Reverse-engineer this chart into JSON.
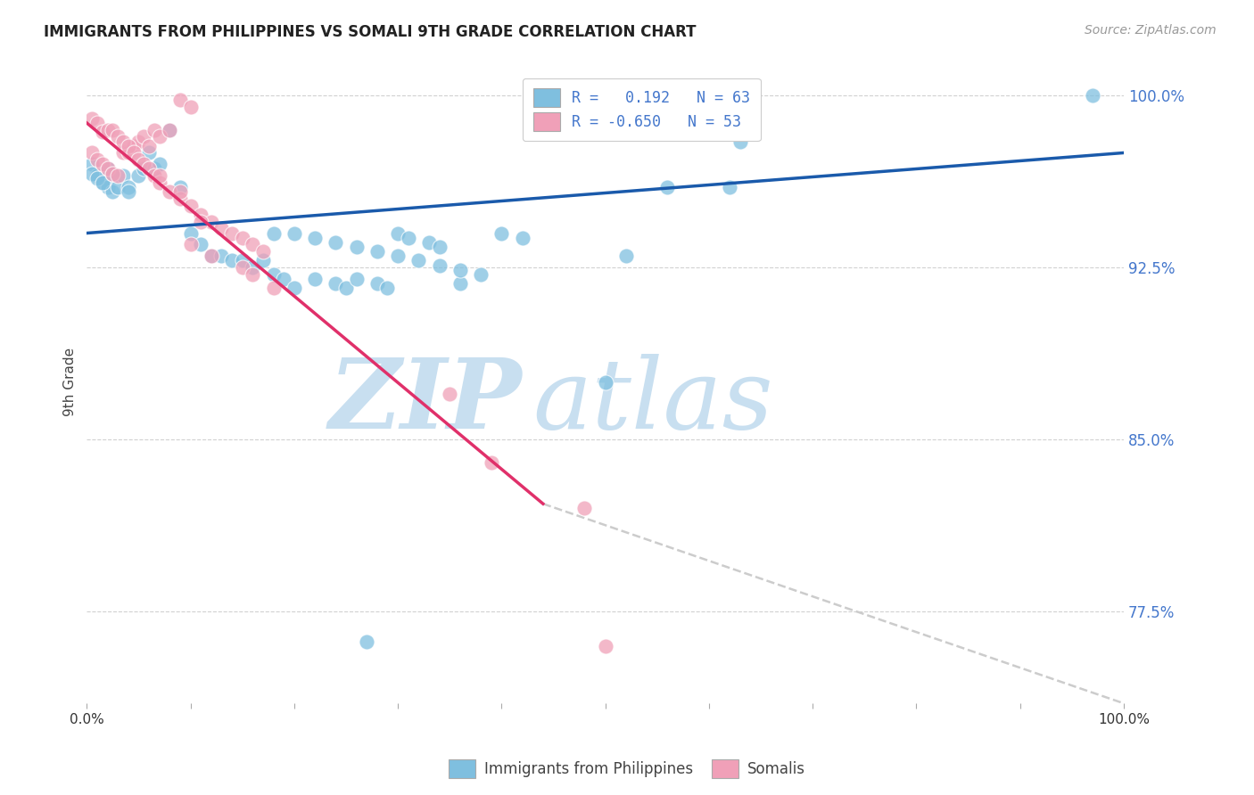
{
  "title": "IMMIGRANTS FROM PHILIPPINES VS SOMALI 9TH GRADE CORRELATION CHART",
  "source": "Source: ZipAtlas.com",
  "ylabel": "9th Grade",
  "xlim": [
    0.0,
    1.0
  ],
  "ylim": [
    0.735,
    1.015
  ],
  "yticks": [
    0.775,
    0.85,
    0.925,
    1.0
  ],
  "ytick_labels": [
    "77.5%",
    "85.0%",
    "92.5%",
    "100.0%"
  ],
  "grid_color": "#cccccc",
  "background_color": "#ffffff",
  "watermark_text": "ZIPatlas",
  "watermark_color": "#d0e8f8",
  "legend_r1": "R =   0.192   N = 63",
  "legend_r2": "R = -0.650   N = 53",
  "blue_color": "#7fbfdf",
  "pink_color": "#f0a0b8",
  "trendline_blue": "#1a5aab",
  "trendline_pink": "#e0306a",
  "trendline_gray": "#cccccc",
  "philippines_scatter_x": [
    0.005,
    0.01,
    0.015,
    0.02,
    0.025,
    0.03,
    0.035,
    0.04,
    0.04,
    0.05,
    0.055,
    0.06,
    0.065,
    0.07,
    0.08,
    0.09,
    0.1,
    0.11,
    0.12,
    0.13,
    0.14,
    0.15,
    0.16,
    0.17,
    0.18,
    0.19,
    0.2,
    0.22,
    0.24,
    0.25,
    0.26,
    0.28,
    0.29,
    0.3,
    0.31,
    0.33,
    0.34,
    0.36,
    0.18,
    0.2,
    0.22,
    0.24,
    0.26,
    0.28,
    0.3,
    0.32,
    0.34,
    0.36,
    0.38,
    0.4,
    0.42,
    0.5,
    0.52,
    0.56,
    0.62,
    0.63,
    0.97,
    0.005,
    0.01,
    0.015,
    0.02,
    0.025,
    0.27
  ],
  "philippines_scatter_y": [
    0.97,
    0.965,
    0.962,
    0.96,
    0.958,
    0.96,
    0.965,
    0.96,
    0.958,
    0.965,
    0.968,
    0.975,
    0.968,
    0.97,
    0.985,
    0.96,
    0.94,
    0.935,
    0.93,
    0.93,
    0.928,
    0.928,
    0.925,
    0.928,
    0.922,
    0.92,
    0.916,
    0.92,
    0.918,
    0.916,
    0.92,
    0.918,
    0.916,
    0.94,
    0.938,
    0.936,
    0.934,
    0.918,
    0.94,
    0.94,
    0.938,
    0.936,
    0.934,
    0.932,
    0.93,
    0.928,
    0.926,
    0.924,
    0.922,
    0.94,
    0.938,
    0.875,
    0.93,
    0.96,
    0.96,
    0.98,
    1.0,
    0.966,
    0.964,
    0.962,
    0.968,
    0.966,
    0.762
  ],
  "somali_scatter_x": [
    0.005,
    0.01,
    0.015,
    0.02,
    0.025,
    0.03,
    0.035,
    0.04,
    0.045,
    0.05,
    0.055,
    0.06,
    0.065,
    0.07,
    0.08,
    0.09,
    0.1,
    0.005,
    0.01,
    0.015,
    0.02,
    0.025,
    0.03,
    0.035,
    0.04,
    0.045,
    0.05,
    0.055,
    0.06,
    0.065,
    0.07,
    0.08,
    0.09,
    0.1,
    0.11,
    0.12,
    0.13,
    0.14,
    0.15,
    0.16,
    0.17,
    0.1,
    0.12,
    0.15,
    0.16,
    0.18,
    0.35,
    0.39,
    0.48,
    0.5,
    0.07,
    0.09,
    0.11
  ],
  "somali_scatter_y": [
    0.975,
    0.972,
    0.97,
    0.968,
    0.966,
    0.965,
    0.975,
    0.975,
    0.978,
    0.98,
    0.982,
    0.978,
    0.985,
    0.982,
    0.985,
    0.998,
    0.995,
    0.99,
    0.988,
    0.984,
    0.985,
    0.985,
    0.982,
    0.98,
    0.978,
    0.975,
    0.972,
    0.97,
    0.968,
    0.965,
    0.962,
    0.958,
    0.955,
    0.952,
    0.948,
    0.945,
    0.942,
    0.94,
    0.938,
    0.935,
    0.932,
    0.935,
    0.93,
    0.925,
    0.922,
    0.916,
    0.87,
    0.84,
    0.82,
    0.76,
    0.965,
    0.958,
    0.945
  ],
  "blue_trendline_x": [
    0.0,
    1.0
  ],
  "blue_trendline_y": [
    0.94,
    0.975
  ],
  "pink_trendline_x": [
    0.0,
    0.44
  ],
  "pink_trendline_y": [
    0.988,
    0.822
  ],
  "gray_trendline_x": [
    0.44,
    1.0
  ],
  "gray_trendline_y": [
    0.822,
    0.735
  ]
}
